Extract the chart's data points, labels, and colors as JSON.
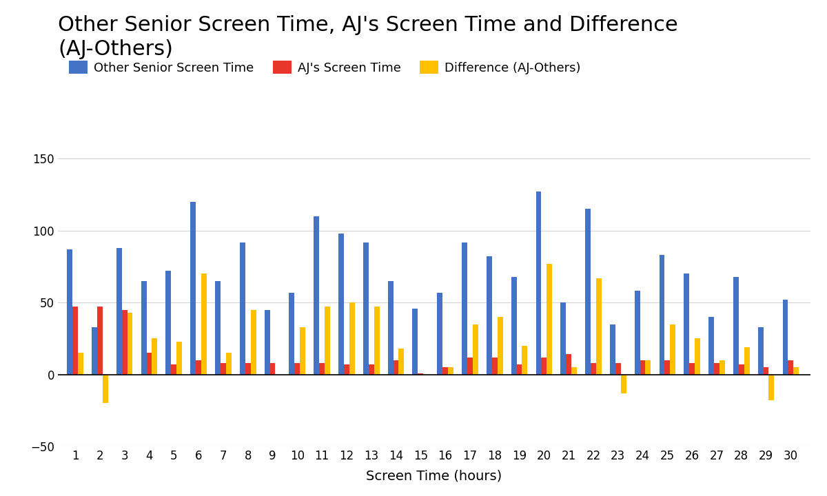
{
  "title": "Other Senior Screen Time, AJ's Screen Time and Difference\n(AJ-Others)",
  "xlabel": "Screen Time (hours)",
  "ylabel": "",
  "days": [
    1,
    2,
    3,
    4,
    5,
    6,
    7,
    8,
    9,
    10,
    11,
    12,
    13,
    14,
    15,
    16,
    17,
    18,
    19,
    20,
    21,
    22,
    23,
    24,
    25,
    26,
    27,
    28,
    29,
    30
  ],
  "others": [
    87,
    33,
    88,
    65,
    72,
    120,
    65,
    92,
    45,
    57,
    110,
    98,
    92,
    65,
    46,
    57,
    92,
    82,
    68,
    127,
    50,
    115,
    35,
    58,
    83,
    70,
    40,
    68,
    33,
    52
  ],
  "aj": [
    47,
    47,
    45,
    15,
    7,
    10,
    8,
    8,
    8,
    8,
    8,
    7,
    7,
    10,
    1,
    5,
    12,
    12,
    7,
    12,
    14,
    8,
    8,
    10,
    10,
    8,
    8,
    7,
    5,
    10
  ],
  "diff": [
    15,
    -20,
    43,
    25,
    23,
    70,
    15,
    45,
    0,
    33,
    47,
    50,
    47,
    18,
    0,
    5,
    35,
    40,
    20,
    77,
    5,
    67,
    -13,
    10,
    35,
    25,
    10,
    19,
    -18,
    5
  ],
  "ylim": [
    -50,
    150
  ],
  "yticks": [
    -50,
    0,
    50,
    100,
    150
  ],
  "bar_width": 0.22,
  "color_others": "#4472C4",
  "color_aj": "#E8362A",
  "color_diff": "#FFC000",
  "background": "#FFFFFF",
  "title_fontsize": 22,
  "axis_label_fontsize": 14,
  "tick_fontsize": 12,
  "legend_fontsize": 13
}
